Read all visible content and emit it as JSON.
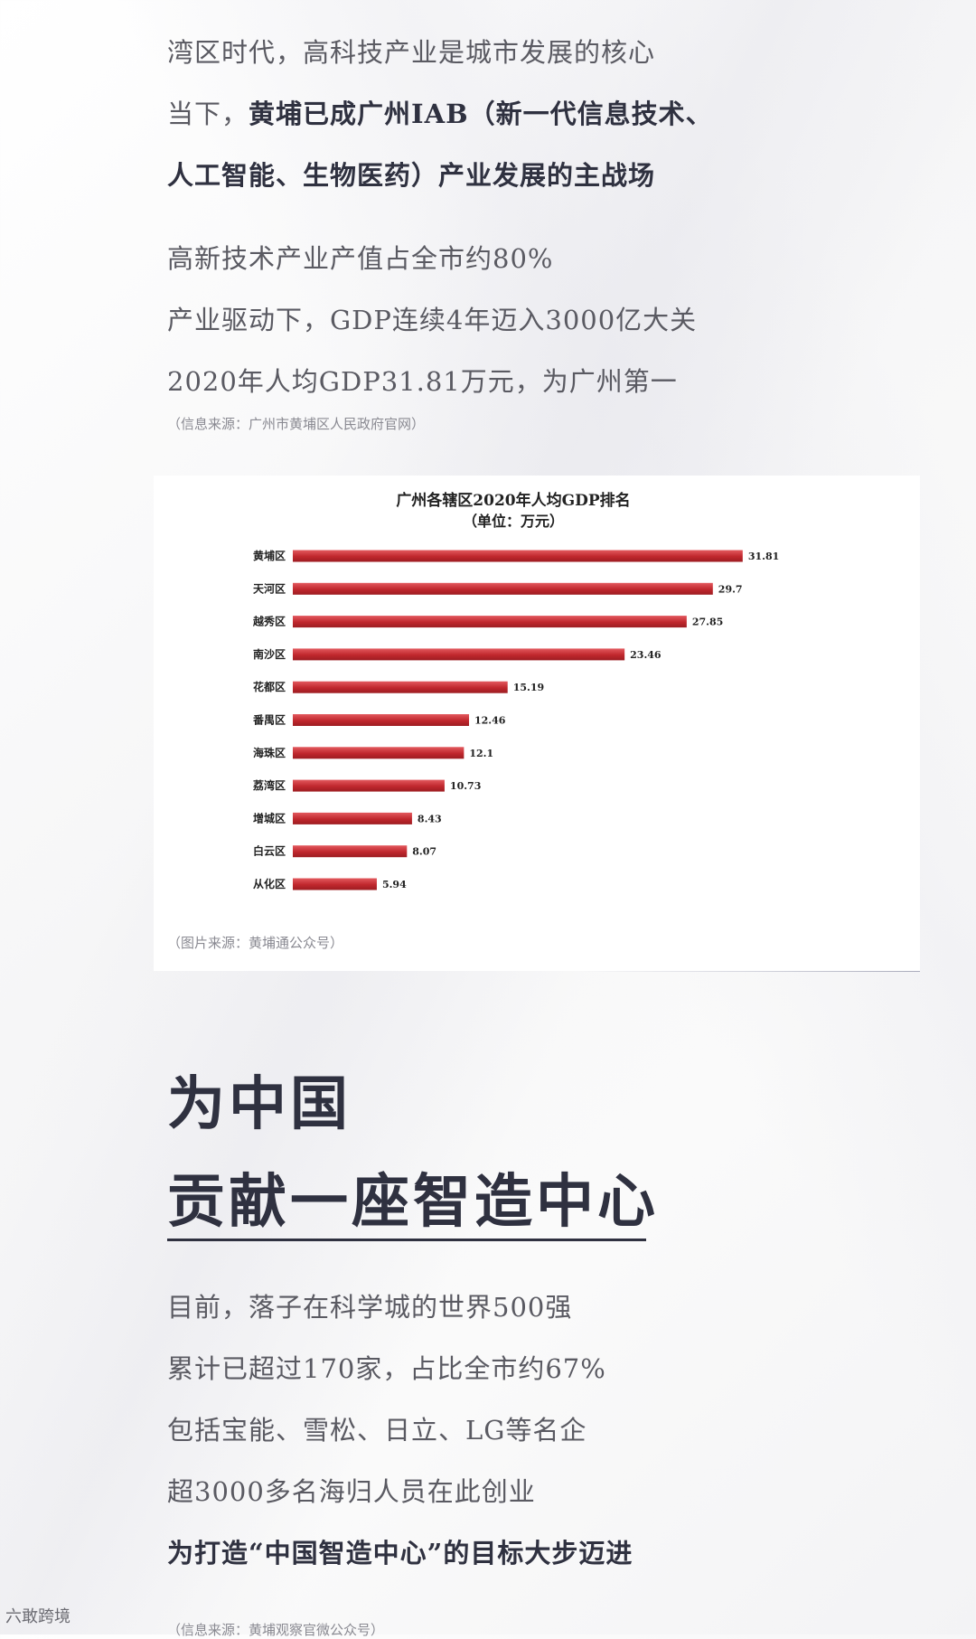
{
  "intro": {
    "line1": "湾区时代，高科技产业是城市发展的核心",
    "line2_prefix": "当下，",
    "line2_bold": "黄埔已成广州IAB（新一代信息技术、",
    "line3_bold": "人工智能、生物医药）产业发展的主战场"
  },
  "facts": [
    "高新技术产业产值占全市约80%",
    "产业驱动下，GDP连续4年迈入3000亿大关",
    "2020年人均GDP31.81万元，为广州第一"
  ],
  "source1": "（信息来源：广州市黄埔区人民政府官网）",
  "chart_data": {
    "type": "bar",
    "orientation": "horizontal",
    "title": "广州各辖区2020年人均GDP排名",
    "subtitle": "（单位：万元）",
    "categories": [
      "黄埔区",
      "天河区",
      "越秀区",
      "南沙区",
      "花都区",
      "番禺区",
      "海珠区",
      "荔湾区",
      "增城区",
      "白云区",
      "从化区"
    ],
    "values": [
      31.81,
      29.7,
      27.85,
      23.46,
      15.19,
      12.46,
      12.1,
      10.73,
      8.43,
      8.07,
      5.94
    ],
    "value_labels": [
      "31.81",
      "29.7",
      "27.85",
      "23.46",
      "15.19",
      "12.46",
      "12.1",
      "10.73",
      "8.43",
      "8.07",
      "5.94"
    ],
    "xlim": [
      0,
      35
    ],
    "grid": false,
    "legend": "none",
    "bar_color": "#c0272d",
    "bar_color_light": "#e3595e"
  },
  "source2": "（图片来源：黄埔通公众号）",
  "heading": {
    "line1": "为中国",
    "line2": "贡献一座智造中心"
  },
  "body": [
    "目前，落子在科学城的世界500强",
    "累计已超过170家，占比全市约67%",
    "包括宝能、雪松、日立、LG等名企",
    "超3000多名海归人员在此创业"
  ],
  "body_bold": "为打造“中国智造中心”的目标大步迈进",
  "source3": "（信息来源：黄埔观察官微公众号）",
  "watermark": "六敢跨境",
  "colors": {
    "heading": "#2f3140",
    "text": "#5a5a62",
    "source": "#8a8a92"
  }
}
